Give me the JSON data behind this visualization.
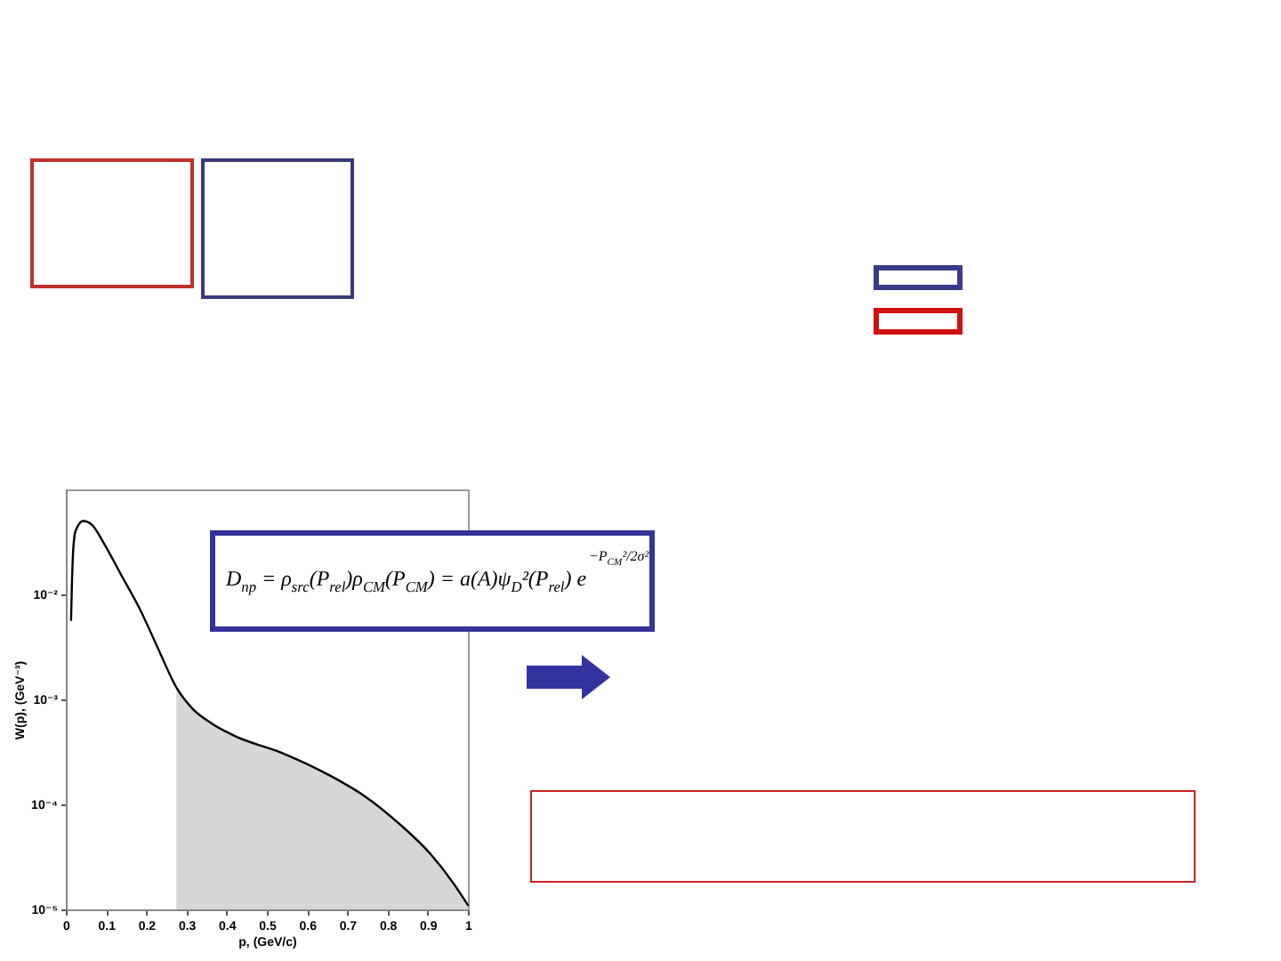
{
  "chart_data": {
    "type": "line",
    "xlabel": "p, (GeV/c)",
    "ylabel": "W(p), (GeV⁻³)",
    "annotations": [
      "D$_{np}$ = ρ$_{src}$(P$_{rel}$)ρ$_{CM}$(P$_{CM}$) = a(A)ψ$_{D}$²(P$_{rel}$) e",
      "−P$_{CM}$²/2σ²"
    ],
    "series": [
      {
        "type": "area",
        "color": "#cccccc",
        "x": [
          0.275,
          0.316,
          0.36,
          0.419,
          0.537,
          0.655,
          0.743,
          0.832,
          0.906,
          0.965,
          1
        ],
        "values": [
          0.0013,
          0.00081,
          0.0006,
          0.00045,
          0.00031,
          0.00019,
          0.00012,
          6.4e-05,
          3.4e-05,
          1.75e-05,
          1.1e-05
        ]
      },
      {
        "color": "#000000",
        "x": [
          0.013,
          0.015,
          0.018,
          0.024,
          0.043,
          0.065,
          0.094,
          0.139,
          0.183,
          0.227,
          0.275,
          0.316,
          0.36,
          0.419,
          0.537,
          0.655,
          0.743,
          0.832,
          0.906,
          0.965,
          1
        ],
        "values": [
          0.0057,
          0.012,
          0.025,
          0.04,
          0.05,
          0.046,
          0.031,
          0.015,
          0.0074,
          0.0032,
          0.0013,
          0.00081,
          0.0006,
          0.00045,
          0.00031,
          0.00019,
          0.00012,
          6.4e-05,
          3.4e-05,
          1.75e-05,
          1.1e-05
        ]
      }
    ],
    "xlim": [
      0,
      1
    ],
    "xticks": [
      0,
      0.1,
      0.2,
      0.3,
      0.4,
      0.5,
      0.6,
      0.7,
      0.8,
      0.9,
      1
    ],
    "ylim": [
      1e-05,
      0.1
    ],
    "yticks": [
      {
        "value": 1e-05,
        "label": "10⁻⁵"
      },
      {
        "value": 0.0001,
        "label": "10⁻⁴"
      },
      {
        "value": 0.001,
        "label": "10⁻³"
      },
      {
        "value": 0.01,
        "label": "10⁻²"
      }
    ],
    "log": true
  }
}
